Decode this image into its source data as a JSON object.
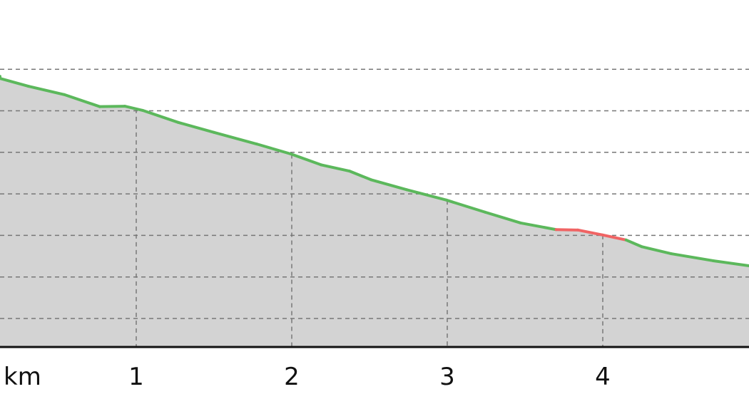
{
  "chart_data": {
    "type": "area",
    "title": "",
    "xlabel": "km",
    "ylabel": "",
    "x_ticks": [
      "1",
      "2",
      "3",
      "4"
    ],
    "x_tick_values": [
      1,
      2,
      3,
      4
    ],
    "xlim": [
      0.12,
      4.94
    ],
    "ylim": [
      -0.69,
      7.6
    ],
    "y_gridlines": [
      0,
      1,
      2,
      3,
      4,
      5,
      6
    ],
    "y_tick_labels_shown": false,
    "grid": true,
    "fill_color": "#d3d3d3",
    "line_color": "#5cb85c",
    "highlight_color": "#f06464",
    "highlight_range_km": [
      3.7,
      4.15
    ],
    "x": [
      0.124,
      0.307,
      0.537,
      0.766,
      0.927,
      1.041,
      1.27,
      1.5,
      1.775,
      1.995,
      2.188,
      2.37,
      2.51,
      2.74,
      2.995,
      3.243,
      3.472,
      3.7,
      3.84,
      4.0,
      4.15,
      4.25,
      4.44,
      4.71,
      4.94
    ],
    "y": [
      5.78,
      5.59,
      5.39,
      5.1,
      5.11,
      5.01,
      4.72,
      4.48,
      4.2,
      3.96,
      3.7,
      3.55,
      3.34,
      3.1,
      2.85,
      2.56,
      2.3,
      2.14,
      2.13,
      2.01,
      1.89,
      1.73,
      1.56,
      1.39,
      1.27
    ]
  }
}
